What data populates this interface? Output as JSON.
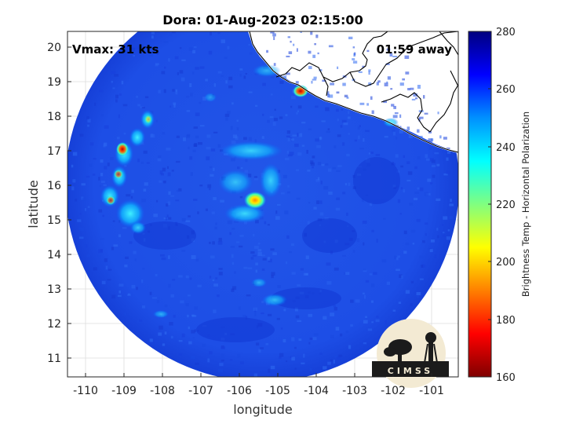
{
  "title": "Dora: 01-Aug-2023 02:15:00",
  "vmax_label": "Vmax: 31 kts",
  "time_offset_label": "01:59 away",
  "xlabel": "longitude",
  "ylabel": "latitude",
  "colorbar_label": "Brightness Temp - Horizontal Polarization",
  "logo_text": "CIMSS",
  "x_ticks": [
    "-110",
    "-109",
    "-108",
    "-107",
    "-106",
    "-105",
    "-104",
    "-103",
    "-102",
    "-101"
  ],
  "y_ticks": [
    "11",
    "12",
    "13",
    "14",
    "15",
    "16",
    "17",
    "18",
    "19",
    "20"
  ],
  "colorbar_ticks": [
    "160",
    "180",
    "200",
    "220",
    "240",
    "260",
    "280"
  ],
  "colors": {
    "land_fill": "#ffffff",
    "ocean_fill": "#1e52e8",
    "coastline": "#ffffff"
  }
}
